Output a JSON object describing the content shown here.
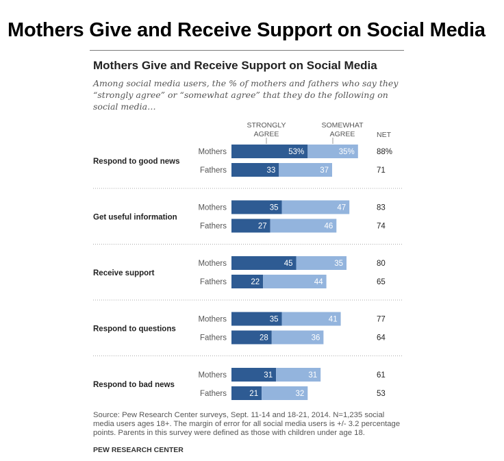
{
  "page_title": "Mothers Give and Receive Support on Social Media",
  "chart_data": {
    "type": "bar",
    "stacked": true,
    "orientation": "horizontal",
    "title": "Mothers Give and Receive Support on Social Media",
    "subtitle": "Among social media users, the % of mothers and fathers who say they “strongly agree” or “somewhat agree” that they do the following on social media…",
    "series_headers": {
      "strongly_agree": "STRONGLY\nAGREE",
      "somewhat_agree": "SOMEWHAT\nAGREE",
      "net": "NET"
    },
    "groups": [
      "Mothers",
      "Fathers"
    ],
    "categories": [
      "Respond to good news",
      "Get useful information",
      "Receive support",
      "Respond to questions",
      "Respond to bad news"
    ],
    "rows": [
      {
        "category": "Respond to good news",
        "group": "Mothers",
        "strongly": 53,
        "somewhat": 35,
        "net": 88,
        "strongly_label": "53%",
        "somewhat_label": "35%",
        "net_label": "88%"
      },
      {
        "category": "Respond to good news",
        "group": "Fathers",
        "strongly": 33,
        "somewhat": 37,
        "net": 71,
        "strongly_label": "33",
        "somewhat_label": "37",
        "net_label": "71"
      },
      {
        "category": "Get useful information",
        "group": "Mothers",
        "strongly": 35,
        "somewhat": 47,
        "net": 83,
        "strongly_label": "35",
        "somewhat_label": "47",
        "net_label": "83"
      },
      {
        "category": "Get useful information",
        "group": "Fathers",
        "strongly": 27,
        "somewhat": 46,
        "net": 74,
        "strongly_label": "27",
        "somewhat_label": "46",
        "net_label": "74"
      },
      {
        "category": "Receive support",
        "group": "Mothers",
        "strongly": 45,
        "somewhat": 35,
        "net": 80,
        "strongly_label": "45",
        "somewhat_label": "35",
        "net_label": "80"
      },
      {
        "category": "Receive support",
        "group": "Fathers",
        "strongly": 22,
        "somewhat": 44,
        "net": 65,
        "strongly_label": "22",
        "somewhat_label": "44",
        "net_label": "65"
      },
      {
        "category": "Respond to questions",
        "group": "Mothers",
        "strongly": 35,
        "somewhat": 41,
        "net": 77,
        "strongly_label": "35",
        "somewhat_label": "41",
        "net_label": "77"
      },
      {
        "category": "Respond to questions",
        "group": "Fathers",
        "strongly": 28,
        "somewhat": 36,
        "net": 64,
        "strongly_label": "28",
        "somewhat_label": "36",
        "net_label": "64"
      },
      {
        "category": "Respond to bad news",
        "group": "Mothers",
        "strongly": 31,
        "somewhat": 31,
        "net": 61,
        "strongly_label": "31",
        "somewhat_label": "31",
        "net_label": "61"
      },
      {
        "category": "Respond to bad news",
        "group": "Fathers",
        "strongly": 21,
        "somewhat": 32,
        "net": 53,
        "strongly_label": "21",
        "somewhat_label": "32",
        "net_label": "53"
      }
    ],
    "colors": {
      "strongly": "#2e5b93",
      "somewhat": "#93b4dd",
      "divider": "#aaaaaa",
      "label_dark": "#222222",
      "label_light": "#555555",
      "bar_text": "#ffffff"
    },
    "source": "Source: Pew Research Center surveys, Sept. 11-14 and 18-21, 2014. N=1,235 social media users ages 18+. The margin of error for all social media users is +/- 3.2 percentage points. Parents in this survey were defined as those with children under age 18.",
    "organization": "PEW RESEARCH CENTER"
  }
}
